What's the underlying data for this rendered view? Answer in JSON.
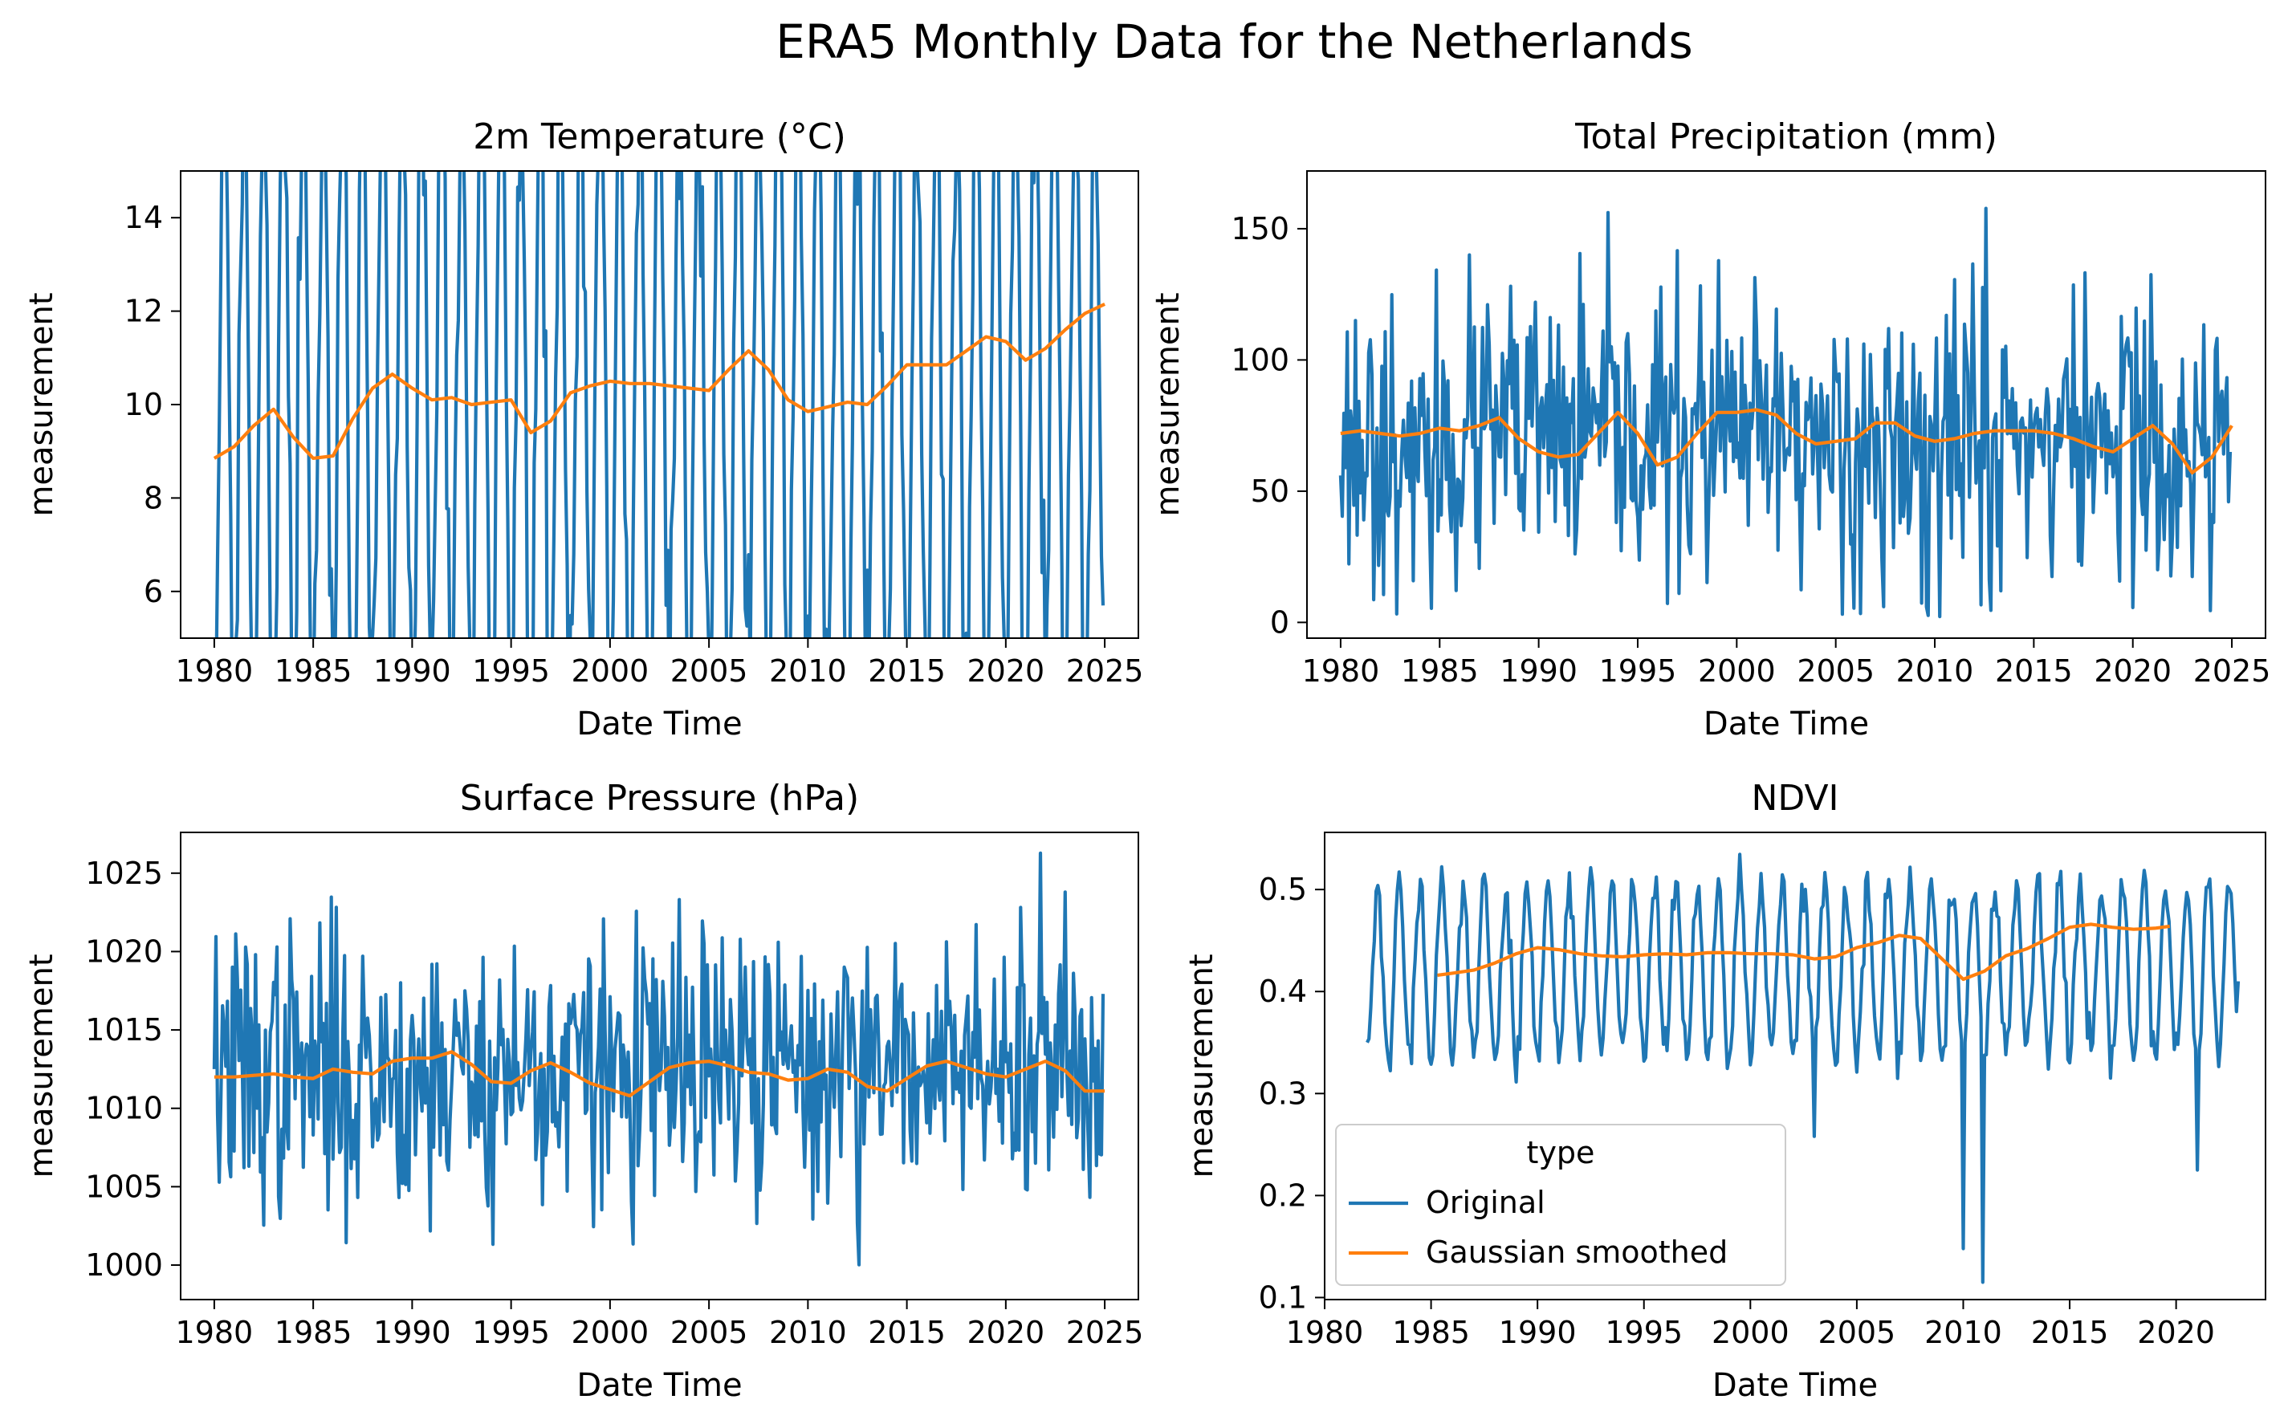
{
  "figure": {
    "title": "ERA5 Monthly Data for the Netherlands"
  },
  "colors": {
    "original": "#1f77b4",
    "smoothed": "#ff7f0e"
  },
  "chart_data": [
    {
      "type": "line",
      "title": "2m Temperature (°C)",
      "xlabel": "Date Time",
      "ylabel": "measurement",
      "xlim": [
        1978.3,
        2026.7
      ],
      "ylim": [
        5.0,
        15.0
      ],
      "xticks": [
        1980,
        1985,
        1990,
        1995,
        2000,
        2005,
        2010,
        2015,
        2020,
        2025
      ],
      "yticks": [
        6,
        8,
        10,
        12,
        14
      ],
      "clip": true,
      "series": [
        {
          "name": "Original",
          "kind": "seasonal",
          "x_start": 1980.0,
          "x_end": 2024.92,
          "step": 0.0833333,
          "mean": 10.3,
          "amplitude": 7.0,
          "phase_month": 6.5,
          "noise": 1.2,
          "seed": 11,
          "first": 3.5,
          "last": 5.7
        },
        {
          "name": "Gaussian smoothed",
          "x": [
            1980.0,
            1981.0,
            1982.0,
            1983.0,
            1984.0,
            1985.0,
            1986.0,
            1987.0,
            1988.0,
            1989.0,
            1990.0,
            1991.0,
            1992.0,
            1993.0,
            1994.0,
            1995.0,
            1996.0,
            1997.0,
            1998.0,
            1999.0,
            2000.0,
            2001.0,
            2002.0,
            2003.0,
            2004.0,
            2005.0,
            2006.0,
            2007.0,
            2008.0,
            2009.0,
            2010.0,
            2011.0,
            2012.0,
            2013.0,
            2014.0,
            2015.0,
            2016.0,
            2017.0,
            2018.0,
            2019.0,
            2020.0,
            2021.0,
            2022.0,
            2023.0,
            2024.0,
            2025.0
          ],
          "y": [
            8.85,
            9.1,
            9.55,
            9.9,
            9.3,
            8.85,
            8.9,
            9.7,
            10.35,
            10.65,
            10.35,
            10.1,
            10.15,
            10.0,
            10.05,
            10.1,
            9.4,
            9.65,
            10.25,
            10.4,
            10.5,
            10.45,
            10.45,
            10.4,
            10.35,
            10.3,
            10.75,
            11.15,
            10.75,
            10.1,
            9.85,
            9.95,
            10.05,
            10.0,
            10.4,
            10.85,
            10.85,
            10.85,
            11.15,
            11.45,
            11.35,
            10.95,
            11.2,
            11.6,
            11.95,
            12.15
          ]
        }
      ]
    },
    {
      "type": "line",
      "title": "Total Precipitation (mm)",
      "xlabel": "Date Time",
      "ylabel": "measurement",
      "xlim": [
        1978.3,
        2026.7
      ],
      "ylim": [
        -6,
        172
      ],
      "xticks": [
        1980,
        1985,
        1990,
        1995,
        2000,
        2005,
        2010,
        2015,
        2020,
        2025
      ],
      "yticks": [
        0,
        50,
        100,
        150
      ],
      "clip": false,
      "series": [
        {
          "name": "Original",
          "kind": "noise",
          "x_start": 1980.0,
          "x_end": 2024.92,
          "step": 0.0833333,
          "mean": 70,
          "sd": 28,
          "min": 2,
          "max": 164,
          "seed": 23,
          "first": 56,
          "last": 65
        },
        {
          "name": "Gaussian smoothed",
          "x": [
            1980.0,
            1981.0,
            1982.0,
            1983.0,
            1984.0,
            1985.0,
            1986.0,
            1987.0,
            1988.0,
            1989.0,
            1990.0,
            1991.0,
            1992.0,
            1993.0,
            1994.0,
            1995.0,
            1996.0,
            1997.0,
            1998.0,
            1999.0,
            2000.0,
            2001.0,
            2002.0,
            2003.0,
            2004.0,
            2005.0,
            2006.0,
            2007.0,
            2008.0,
            2009.0,
            2010.0,
            2011.0,
            2012.0,
            2013.0,
            2014.0,
            2015.0,
            2016.0,
            2017.0,
            2018.0,
            2019.0,
            2020.0,
            2021.0,
            2022.0,
            2023.0,
            2024.0,
            2025.0
          ],
          "y": [
            72,
            73,
            72,
            71,
            72,
            74,
            73,
            75,
            78,
            70,
            65,
            63,
            64,
            72,
            80,
            72,
            60,
            63,
            72,
            80,
            80,
            81,
            79,
            72,
            68,
            69,
            70,
            76,
            76,
            71,
            69,
            70,
            72,
            73,
            73,
            73,
            72,
            70,
            67,
            65,
            70,
            75,
            68,
            57,
            63,
            75
          ]
        }
      ]
    },
    {
      "type": "line",
      "title": "Surface Pressure (hPa)",
      "xlabel": "Date Time",
      "ylabel": "measurement",
      "xlim": [
        1978.3,
        2026.7
      ],
      "ylim": [
        997.8,
        1027.6
      ],
      "xticks": [
        1980,
        1985,
        1990,
        1995,
        2000,
        2005,
        2010,
        2015,
        2020,
        2025
      ],
      "yticks": [
        1000,
        1005,
        1010,
        1015,
        1020,
        1025
      ],
      "clip": false,
      "series": [
        {
          "name": "Original",
          "kind": "noise",
          "x_start": 1980.0,
          "x_end": 2024.92,
          "step": 0.0833333,
          "mean": 1012.3,
          "sd": 4.6,
          "min": 999,
          "max": 1026.3,
          "seed": 37,
          "first": 1012.5,
          "last": 1017.3
        },
        {
          "name": "Gaussian smoothed",
          "x": [
            1980.0,
            1981.0,
            1982.0,
            1983.0,
            1984.0,
            1985.0,
            1986.0,
            1987.0,
            1988.0,
            1989.0,
            1990.0,
            1991.0,
            1992.0,
            1993.0,
            1994.0,
            1995.0,
            1996.0,
            1997.0,
            1998.0,
            1999.0,
            2000.0,
            2001.0,
            2002.0,
            2003.0,
            2004.0,
            2005.0,
            2006.0,
            2007.0,
            2008.0,
            2009.0,
            2010.0,
            2011.0,
            2012.0,
            2013.0,
            2014.0,
            2015.0,
            2016.0,
            2017.0,
            2018.0,
            2019.0,
            2020.0,
            2021.0,
            2022.0,
            2023.0,
            2024.0,
            2025.0
          ],
          "y": [
            1012.0,
            1012.0,
            1012.1,
            1012.2,
            1012.0,
            1011.9,
            1012.5,
            1012.3,
            1012.2,
            1013.0,
            1013.2,
            1013.2,
            1013.6,
            1012.8,
            1011.7,
            1011.6,
            1012.4,
            1012.9,
            1012.3,
            1011.6,
            1011.2,
            1010.8,
            1011.7,
            1012.6,
            1012.9,
            1013.0,
            1012.7,
            1012.3,
            1012.2,
            1011.8,
            1011.9,
            1012.5,
            1012.3,
            1011.4,
            1011.1,
            1011.9,
            1012.7,
            1013.0,
            1012.6,
            1012.2,
            1012.0,
            1012.5,
            1013.0,
            1012.4,
            1011.1,
            1011.1
          ]
        }
      ]
    },
    {
      "type": "line",
      "title": "NDVI",
      "xlabel": "Date Time",
      "ylabel": "measurement",
      "xlim": [
        1980.0,
        2024.2
      ],
      "ylim": [
        0.098,
        0.556
      ],
      "xticks": [
        1980,
        1985,
        1990,
        1995,
        2000,
        2005,
        2010,
        2015,
        2020
      ],
      "yticks": [
        0.1,
        0.2,
        0.3,
        0.4,
        0.5
      ],
      "clip": false,
      "legend": {
        "title": "type",
        "location": "lower left",
        "entries": [
          "Original",
          "Gaussian smoothed"
        ]
      },
      "series": [
        {
          "name": "Original",
          "kind": "seasonal",
          "x_start": 1982.0,
          "x_end": 2022.92,
          "step": 0.0833333,
          "mean": 0.42,
          "amplitude": 0.085,
          "phase_month": 6.5,
          "noise": 0.012,
          "seed": 53,
          "first": 0.35,
          "last": 0.41,
          "dips": [
            [
              2003.0,
              0.258
            ],
            [
              2010.0,
              0.148
            ],
            [
              2010.92,
              0.115
            ],
            [
              2021.0,
              0.225
            ]
          ]
        },
        {
          "name": "Gaussian smoothed",
          "x": [
            1985.3,
            1986.0,
            1987.0,
            1988.0,
            1989.0,
            1990.0,
            1991.0,
            1992.0,
            1993.0,
            1994.0,
            1995.0,
            1996.0,
            1997.0,
            1998.0,
            1999.0,
            2000.0,
            2001.0,
            2002.0,
            2003.0,
            2004.0,
            2005.0,
            2006.0,
            2007.0,
            2008.0,
            2009.0,
            2010.0,
            2011.0,
            2012.0,
            2013.0,
            2014.0,
            2015.0,
            2016.0,
            2017.0,
            2018.0,
            2019.0,
            2019.7
          ],
          "y": [
            0.416,
            0.418,
            0.421,
            0.428,
            0.437,
            0.443,
            0.441,
            0.437,
            0.435,
            0.434,
            0.436,
            0.437,
            0.436,
            0.438,
            0.438,
            0.437,
            0.437,
            0.436,
            0.432,
            0.434,
            0.443,
            0.448,
            0.455,
            0.452,
            0.432,
            0.412,
            0.42,
            0.435,
            0.442,
            0.452,
            0.463,
            0.466,
            0.463,
            0.461,
            0.462,
            0.464
          ]
        }
      ]
    }
  ]
}
